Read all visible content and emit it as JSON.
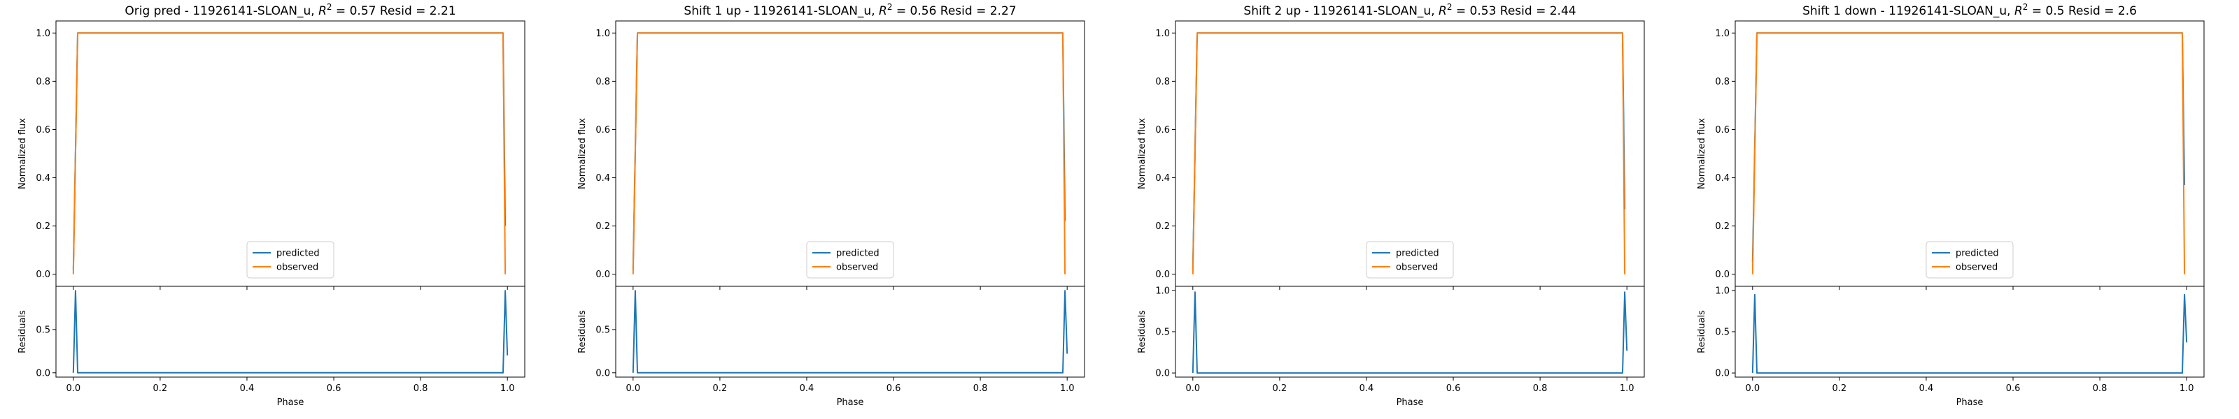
{
  "colors": {
    "predicted": "#1f77b4",
    "observed": "#ff7f0e"
  },
  "chart_data": [
    {
      "type": "line",
      "title": "Orig pred - 11926141-SLOAN_u, $R^2 = 0.57$ Resid = 2.21",
      "title_parts": {
        "prefix": "Orig pred - 11926141-SLOAN_u, ",
        "r2": "0.57",
        "resid": " Resid = 2.21"
      },
      "top": {
        "ylabel": "Normalized flux",
        "ylim": [
          -0.05,
          1.05
        ],
        "yticks": [
          "0.0",
          "0.2",
          "0.4",
          "0.6",
          "0.8",
          "1.0"
        ],
        "series": [
          {
            "name": "predicted",
            "x": [
              0.0,
              0.01,
              0.99,
              0.995
            ],
            "y": [
              0.02,
              1.0,
              1.0,
              0.2
            ]
          },
          {
            "name": "observed",
            "x": [
              0.0,
              0.01,
              0.99,
              0.995
            ],
            "y": [
              0.0,
              1.0,
              1.0,
              0.0
            ]
          }
        ],
        "legend": [
          "predicted",
          "observed"
        ],
        "legend_loc": "lower center"
      },
      "bottom": {
        "ylabel": "Residuals",
        "ylim": [
          -0.05,
          1.0
        ],
        "yticks": [
          "0.0",
          "0.5"
        ],
        "xlabel": "Phase",
        "xlim": [
          -0.04,
          1.04
        ],
        "xticks": [
          "0.0",
          "0.2",
          "0.4",
          "0.6",
          "0.8",
          "1.0"
        ],
        "series": [
          {
            "name": "residuals",
            "x": [
              0.0,
              0.005,
              0.01,
              0.99,
              0.995,
              1.0
            ],
            "y": [
              0.0,
              0.95,
              0.0,
              0.0,
              0.95,
              0.2
            ]
          }
        ]
      }
    },
    {
      "type": "line",
      "title": "Shift 1 up - 11926141-SLOAN_u, $R^2 = 0.56$ Resid = 2.27",
      "title_parts": {
        "prefix": "Shift 1 up - 11926141-SLOAN_u, ",
        "r2": "0.56",
        "resid": " Resid = 2.27"
      },
      "top": {
        "ylabel": "Normalized flux",
        "ylim": [
          -0.05,
          1.05
        ],
        "yticks": [
          "0.0",
          "0.2",
          "0.4",
          "0.6",
          "0.8",
          "1.0"
        ],
        "series": [
          {
            "name": "predicted",
            "x": [
              0.0,
              0.01,
              0.99,
              0.995
            ],
            "y": [
              0.02,
              1.0,
              1.0,
              0.22
            ]
          },
          {
            "name": "observed",
            "x": [
              0.0,
              0.01,
              0.99,
              0.995
            ],
            "y": [
              0.0,
              1.0,
              1.0,
              0.0
            ]
          }
        ],
        "legend": [
          "predicted",
          "observed"
        ],
        "legend_loc": "lower center"
      },
      "bottom": {
        "ylabel": "Residuals",
        "ylim": [
          -0.05,
          1.0
        ],
        "yticks": [
          "0.0",
          "0.5"
        ],
        "xlabel": "Phase",
        "xlim": [
          -0.04,
          1.04
        ],
        "xticks": [
          "0.0",
          "0.2",
          "0.4",
          "0.6",
          "0.8",
          "1.0"
        ],
        "series": [
          {
            "name": "residuals",
            "x": [
              0.0,
              0.005,
              0.01,
              0.99,
              0.995,
              1.0
            ],
            "y": [
              0.0,
              0.95,
              0.0,
              0.0,
              0.95,
              0.22
            ]
          }
        ]
      }
    },
    {
      "type": "line",
      "title": "Shift 2 up - 11926141-SLOAN_u, $R^2 = 0.53$ Resid = 2.44",
      "title_parts": {
        "prefix": "Shift 2 up - 11926141-SLOAN_u, ",
        "r2": "0.53",
        "resid": " Resid = 2.44"
      },
      "top": {
        "ylabel": "Normalized flux",
        "ylim": [
          -0.05,
          1.05
        ],
        "yticks": [
          "0.0",
          "0.2",
          "0.4",
          "0.6",
          "0.8",
          "1.0"
        ],
        "series": [
          {
            "name": "predicted",
            "x": [
              0.0,
              0.01,
              0.99,
              0.995
            ],
            "y": [
              0.02,
              1.0,
              1.0,
              0.27
            ]
          },
          {
            "name": "observed",
            "x": [
              0.0,
              0.01,
              0.99,
              0.995
            ],
            "y": [
              0.0,
              1.0,
              1.0,
              0.0
            ]
          }
        ],
        "legend": [
          "predicted",
          "observed"
        ],
        "legend_loc": "lower center"
      },
      "bottom": {
        "ylabel": "Residuals",
        "ylim": [
          -0.05,
          1.05
        ],
        "yticks": [
          "0.0",
          "0.5",
          "1.0"
        ],
        "xlabel": "Phase",
        "xlim": [
          -0.04,
          1.04
        ],
        "xticks": [
          "0.0",
          "0.2",
          "0.4",
          "0.6",
          "0.8",
          "1.0"
        ],
        "series": [
          {
            "name": "residuals",
            "x": [
              0.0,
              0.005,
              0.01,
              0.99,
              0.995,
              1.0
            ],
            "y": [
              0.0,
              0.98,
              0.0,
              0.0,
              0.98,
              0.27
            ]
          }
        ]
      }
    },
    {
      "type": "line",
      "title": "Shift 1 down - 11926141-SLOAN_u, $R^2 = 0.5$ Resid = 2.6",
      "title_parts": {
        "prefix": "Shift 1 down - 11926141-SLOAN_u, ",
        "r2": "0.5",
        "resid": " Resid = 2.6"
      },
      "top": {
        "ylabel": "Normalized flux",
        "ylim": [
          -0.05,
          1.05
        ],
        "yticks": [
          "0.0",
          "0.2",
          "0.4",
          "0.6",
          "0.8",
          "1.0"
        ],
        "series": [
          {
            "name": "predicted",
            "x": [
              0.0,
              0.01,
              0.99,
              0.995
            ],
            "y": [
              0.05,
              1.0,
              1.0,
              0.37
            ]
          },
          {
            "name": "observed",
            "x": [
              0.0,
              0.01,
              0.99,
              0.995
            ],
            "y": [
              0.0,
              1.0,
              1.0,
              0.0
            ]
          }
        ],
        "legend": [
          "predicted",
          "observed"
        ],
        "legend_loc": "lower center"
      },
      "bottom": {
        "ylabel": "Residuals",
        "ylim": [
          -0.05,
          1.05
        ],
        "yticks": [
          "0.0",
          "0.5",
          "1.0"
        ],
        "xlabel": "Phase",
        "xlim": [
          -0.04,
          1.04
        ],
        "xticks": [
          "0.0",
          "0.2",
          "0.4",
          "0.6",
          "0.8",
          "1.0"
        ],
        "series": [
          {
            "name": "residuals",
            "x": [
              0.0,
              0.005,
              0.01,
              0.99,
              0.995,
              1.0
            ],
            "y": [
              0.0,
              0.95,
              0.0,
              0.0,
              0.95,
              0.37
            ]
          }
        ]
      }
    }
  ]
}
